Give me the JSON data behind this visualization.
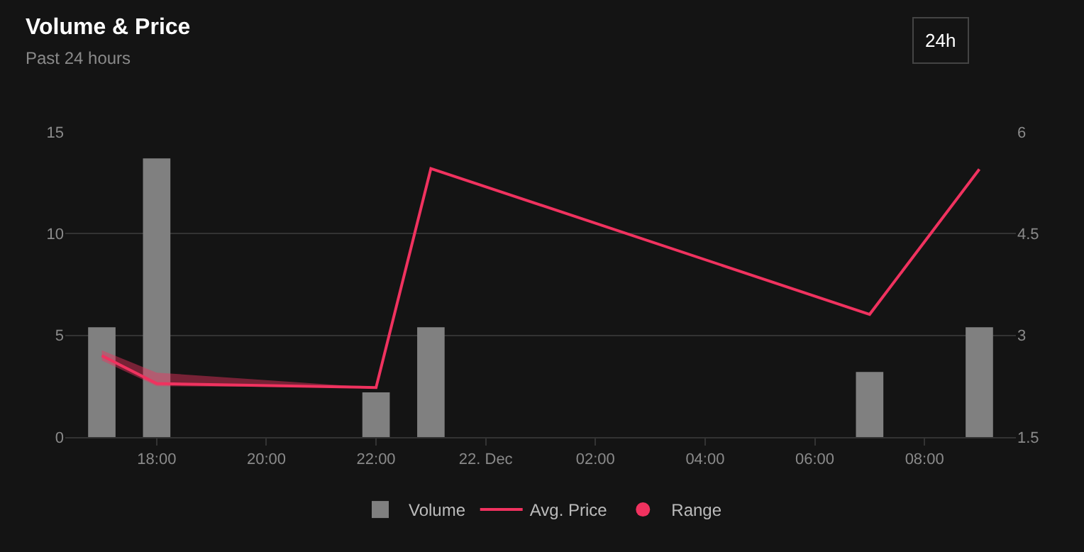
{
  "chart_data": {
    "type": "bar",
    "title": "Volume & Price",
    "subtitle": "Past 24 hours",
    "annotations": [
      "24h"
    ],
    "x": [
      "--12-21T17:00",
      "--12-21T18:00",
      "--12-21T22:00",
      "--12-21T23:00",
      "--12-22T07:00",
      "--12-22T09:00"
    ],
    "series": [
      {
        "name": "Volume",
        "color": "#808080",
        "values": [
          5.4,
          13.7,
          2.2,
          5.4,
          3.2,
          5.4
        ]
      },
      {
        "name": "Avg. Price",
        "type": "line",
        "color": "#f0325f",
        "axis": "y2",
        "values": [
          2.7,
          2.29,
          2.23,
          5.46,
          3.31,
          5.45
        ],
        "lower": [
          2.63,
          2.25,
          2.23,
          5.46,
          3.31,
          5.45
        ],
        "upper": [
          2.78,
          2.45,
          2.23,
          5.46,
          3.31,
          5.45
        ]
      },
      {
        "name": "Range",
        "type": "scatter",
        "color": "#f0325f",
        "axis": "y2",
        "values": [
          null,
          null,
          null,
          null,
          null,
          null
        ]
      }
    ],
    "xlim": [
      "--12-21T16:20",
      "--12-22T09:40"
    ],
    "xticks": [
      {
        "value": "--12-21T18:00",
        "label": "18:00"
      },
      {
        "value": "--12-21T20:00",
        "label": "20:00"
      },
      {
        "value": "--12-21T22:00",
        "label": "22:00"
      },
      {
        "value": "--12-22T00:00",
        "label": "22. Dec"
      },
      {
        "value": "--12-22T02:00",
        "label": "02:00"
      },
      {
        "value": "--12-22T04:00",
        "label": "04:00"
      },
      {
        "value": "--12-22T06:00",
        "label": "06:00"
      },
      {
        "value": "--12-22T08:00",
        "label": "08:00"
      }
    ],
    "ylim": [
      0,
      15
    ],
    "yticks": [
      0,
      5,
      10,
      15
    ],
    "y2lim": [
      1.5,
      6
    ],
    "y2ticks": [
      1.5,
      3,
      4.5,
      6
    ],
    "grid": "y",
    "legend": "bottom",
    "marker": "none",
    "line_style": "solid"
  }
}
